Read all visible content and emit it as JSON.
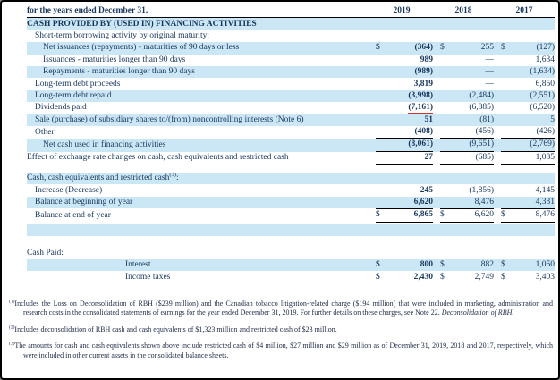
{
  "page": {
    "header_label": "for the years ended December 31,",
    "years": [
      "2019",
      "2018",
      "2017"
    ],
    "dollar_sign": "$"
  },
  "colors": {
    "row_highlight": "#cbe7f5",
    "text_navy": "#17365d",
    "red_annotation": "#d0342c"
  },
  "table": {
    "rows": [
      {
        "label": "CASH PROVIDED BY (USED IN) FINANCING ACTIVITIES",
        "bold": true,
        "indent": 0,
        "bg": "blue"
      },
      {
        "label": "Short-term borrowing activity by original maturity:",
        "indent": 1,
        "bg": "white"
      },
      {
        "label": "Net issuances (repayments) - maturities of 90 days or less",
        "indent": 2,
        "bg": "blue",
        "dollar": true,
        "values": [
          "(364)",
          "255",
          "(127)"
        ]
      },
      {
        "label": "Issuances - maturities longer than 90 days",
        "indent": 2,
        "bg": "white",
        "values": [
          "989",
          "—",
          "1,634"
        ]
      },
      {
        "label": "Repayments - maturities longer than 90 days",
        "indent": 2,
        "bg": "blue",
        "values": [
          "(989)",
          "—",
          "(1,634)"
        ]
      },
      {
        "label": "Long-term debt proceeds",
        "indent": 1,
        "bg": "white",
        "values": [
          "3,819",
          "—",
          "6,850"
        ]
      },
      {
        "label": "Long-term debt repaid",
        "indent": 1,
        "bg": "blue",
        "values": [
          "(3,998)",
          "(2,484)",
          "(2,551)"
        ]
      },
      {
        "label": "Dividends paid",
        "indent": 1,
        "bg": "white",
        "values": [
          "(7,161)",
          "(6,885)",
          "(6,520)"
        ],
        "red_underline_col": 0
      },
      {
        "label": "Sale (purchase) of subsidiary shares to/(from) noncontrolling interests (Note 6)",
        "indent": 1,
        "bg": "blue",
        "values": [
          "51",
          "(81)",
          "5"
        ]
      },
      {
        "label": "Other",
        "indent": 1,
        "bg": "white",
        "values": [
          "(408)",
          "(456)",
          "(426)"
        ],
        "rule": "bottom"
      },
      {
        "label": "Net cash used in financing activities",
        "indent": 2,
        "bg": "blue",
        "values": [
          "(8,061)",
          "(9,651)",
          "(2,769)"
        ],
        "rule": "bottom"
      },
      {
        "label": "Effect of exchange rate changes on cash, cash equivalents and restricted cash",
        "indent": 0,
        "bg": "white",
        "values": [
          "27",
          "(685)",
          "1,085"
        ],
        "rule": "bottom"
      },
      {
        "spacer": 9,
        "bg": "white"
      },
      {
        "label": "Cash, cash equivalents and restricted cash",
        "sup": "(3)",
        "after": ":",
        "indent": 0,
        "bg": "blue"
      },
      {
        "label": "Increase (Decrease)",
        "indent": 1,
        "bg": "white",
        "values": [
          "245",
          "(1,856)",
          "4,145"
        ]
      },
      {
        "label": "Balance at beginning of year",
        "indent": 1,
        "bg": "blue",
        "values": [
          "6,620",
          "8,476",
          "4,331"
        ]
      },
      {
        "label": "Balance at end of year",
        "indent": 1,
        "bg": "white",
        "dollar": true,
        "values": [
          "6,865",
          "6,620",
          "8,476"
        ],
        "rule": "total"
      },
      {
        "spacer": 13,
        "bg": "blue"
      },
      {
        "spacer": 13,
        "bg": "white"
      },
      {
        "label": "Cash Paid:",
        "indent": 0,
        "bg": "white"
      },
      {
        "label": "Interest",
        "indent": 3,
        "bg": "blue",
        "dollar": true,
        "values": [
          "800",
          "882",
          "1,050"
        ]
      },
      {
        "label": "Income taxes",
        "indent": 3,
        "bg": "white",
        "dollar": true,
        "values": [
          "2,430",
          "2,749",
          "3,403"
        ]
      }
    ]
  },
  "footnotes": [
    {
      "sup": "(1)",
      "text": "Includes the Loss on Deconsolidation of RBH ($239 million) and the Canadian tobacco litigation-related charge ($194 million) that were included in marketing, administration and research costs in the consolidated statements of earnings for the year ended December 31, 2019. For further details on these charges, see Note 22. ",
      "tail": "Deconsolidation of RBH."
    },
    {
      "sup": "(2)",
      "text": "Includes deconsolidation of RBH cash and cash equivalents of $1,323 million and restricted cash of $23 million.",
      "tail": ""
    },
    {
      "sup": "(3)",
      "text": "The amounts for cash and cash equivalents shown above include restricted cash of $4 million, $27 million and $29 million as of December 31, 2019, 2018 and 2017, respectively, which were included in other current assets in the consolidated balance sheets.",
      "tail": ""
    }
  ]
}
